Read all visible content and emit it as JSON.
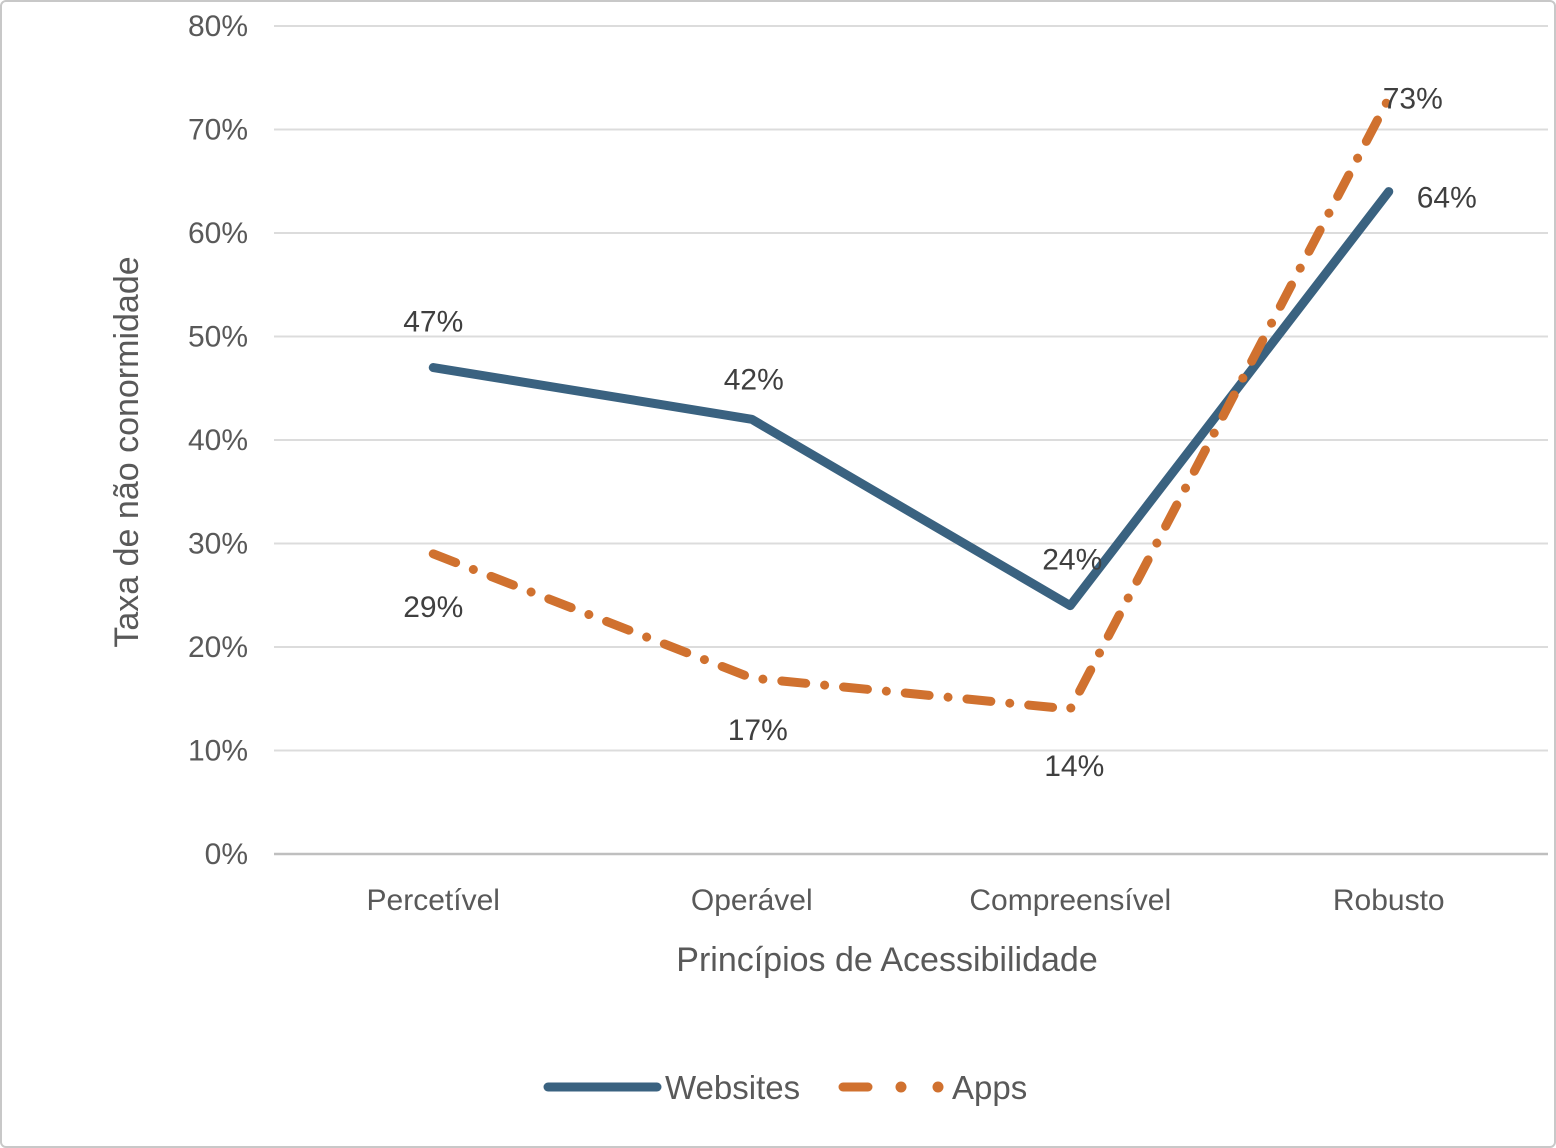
{
  "chart_data": {
    "type": "line",
    "title": "",
    "categories": [
      "Percetível",
      "Operável",
      "Compreensível",
      "Robusto"
    ],
    "series": [
      {
        "name": "Websites",
        "values": [
          47,
          42,
          24,
          64
        ],
        "labels": [
          "47%",
          "42%",
          "24%",
          "64%"
        ],
        "color": "#3A6280",
        "line_style": "solid"
      },
      {
        "name": "Apps",
        "values": [
          29,
          17,
          14,
          73
        ],
        "labels": [
          "29%",
          "17%",
          "14%",
          "73%"
        ],
        "color": "#D0712F",
        "line_style": "dash-dot"
      }
    ],
    "xlabel": "Princípios de Acessibilidade",
    "ylabel": "Taxa de não conormidade",
    "ylim": [
      0,
      80
    ],
    "ytick_step": 10,
    "ytick_labels": [
      "0%",
      "10%",
      "20%",
      "30%",
      "40%",
      "50%",
      "60%",
      "70%",
      "80%"
    ],
    "grid": "horizontal-only",
    "legend_position": "bottom",
    "colors": {
      "grid": "#DCDCDC",
      "axis": "#BFBFBF",
      "tick_text": "#595959",
      "data_label_text": "#3F3F3F",
      "border": "#C8C8C8",
      "background": "#FFFFFF"
    }
  }
}
